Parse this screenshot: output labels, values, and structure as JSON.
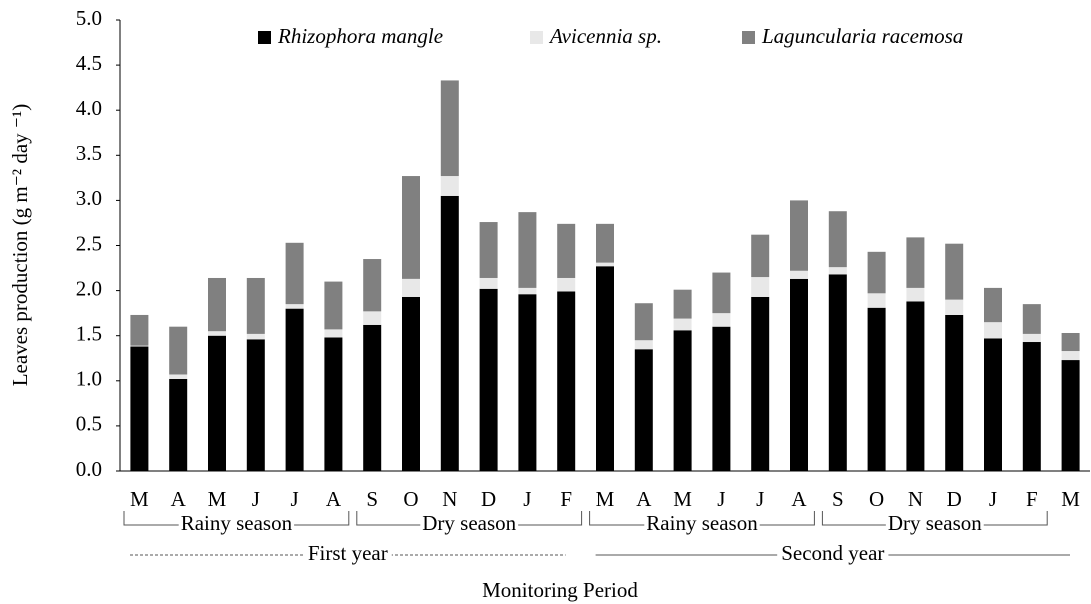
{
  "chart_data": {
    "type": "stacked_bar",
    "xlabel": "Monitoring Period",
    "ylabel": "Leaves production (g m⁻² day ⁻¹)",
    "categories": [
      "M",
      "A",
      "M",
      "J",
      "J",
      "A",
      "S",
      "O",
      "N",
      "D",
      "J",
      "F",
      "M",
      "A",
      "M",
      "J",
      "J",
      "A",
      "S",
      "O",
      "N",
      "D",
      "J",
      "F",
      "M"
    ],
    "series": [
      {
        "name": "Rhizophora mangle",
        "color": "#000000",
        "values": [
          1.38,
          1.02,
          1.5,
          1.46,
          1.8,
          1.48,
          1.62,
          1.93,
          3.05,
          2.02,
          1.96,
          1.99,
          2.27,
          1.35,
          1.56,
          1.6,
          1.93,
          2.13,
          2.18,
          1.81,
          1.88,
          1.73,
          1.47,
          1.43,
          1.23
        ]
      },
      {
        "name": "Avicennia sp.",
        "color": "#e8e8e8",
        "values": [
          0.01,
          0.05,
          0.05,
          0.06,
          0.05,
          0.09,
          0.15,
          0.2,
          0.22,
          0.12,
          0.07,
          0.15,
          0.04,
          0.1,
          0.13,
          0.15,
          0.22,
          0.09,
          0.08,
          0.16,
          0.15,
          0.17,
          0.18,
          0.09,
          0.1
        ]
      },
      {
        "name": "Laguncularia racemosa",
        "color": "#808080",
        "values": [
          0.34,
          0.53,
          0.59,
          0.62,
          0.68,
          0.53,
          0.58,
          1.14,
          1.06,
          0.62,
          0.84,
          0.6,
          0.43,
          0.41,
          0.32,
          0.45,
          0.47,
          0.78,
          0.62,
          0.46,
          0.56,
          0.62,
          0.38,
          0.33,
          0.2
        ]
      }
    ],
    "seasons": [
      "Rainy season",
      "Dry season",
      "Rainy season",
      "Dry season"
    ],
    "years": [
      "First year",
      "Second year"
    ],
    "ylim": [
      0,
      5
    ],
    "yticks": [
      {
        "value": 0,
        "label": "0.0"
      },
      {
        "value": 0.5,
        "label": "0.5"
      },
      {
        "value": 1,
        "label": "1.0"
      },
      {
        "value": 1.5,
        "label": "1.5"
      },
      {
        "value": 2,
        "label": "2.0"
      },
      {
        "value": 2.5,
        "label": "2.5"
      },
      {
        "value": 3,
        "label": "3.0"
      },
      {
        "value": 3.5,
        "label": "3.5"
      },
      {
        "value": 4,
        "label": "4.0"
      },
      {
        "value": 4.5,
        "label": "4.5"
      },
      {
        "value": 5,
        "label": "5.0"
      }
    ],
    "grid": false
  }
}
